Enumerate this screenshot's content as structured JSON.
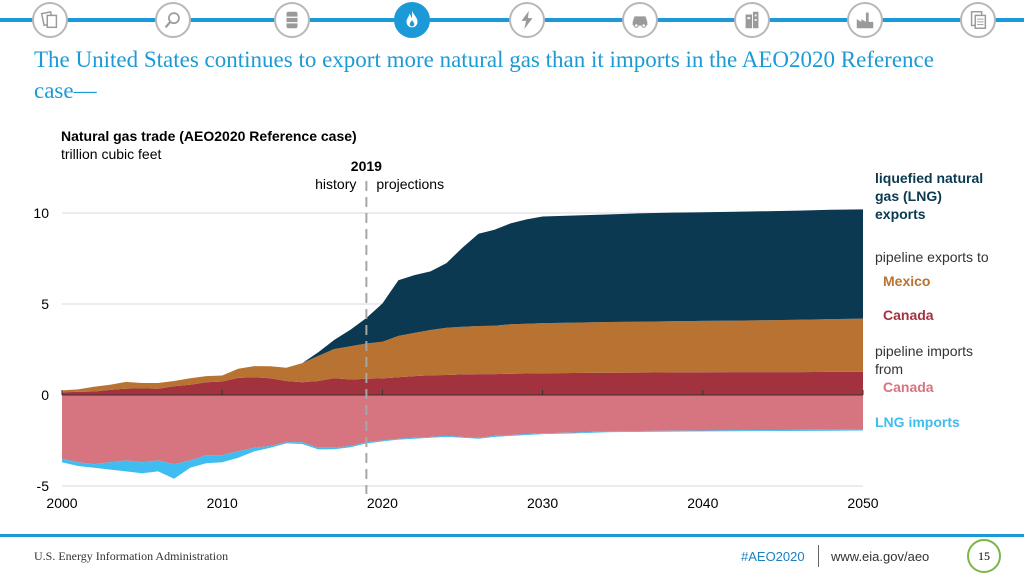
{
  "slide": {
    "title": "The United States continues to export more natural gas than it imports in the AEO2020 Reference case—"
  },
  "nav": {
    "icons": [
      "docs-icon",
      "magnifier-icon",
      "oil-barrel-icon",
      "flame-icon",
      "electricity-icon",
      "car-icon",
      "buildings-icon",
      "industry-icon",
      "document-icon"
    ],
    "active_index": 3
  },
  "colors": {
    "accent": "#1b9ad7",
    "lng_exports": "#0a3951",
    "mexico": "#b87333",
    "canada_exports": "#a3323f",
    "canada_imports": "#d6747f",
    "lng_imports": "#3fbdf0"
  },
  "chart_data": {
    "type": "area",
    "title": "Natural gas trade (AEO2020 Reference case)",
    "ylabel": "trillion cubic feet",
    "xlim": [
      2000,
      2050
    ],
    "ylim": [
      -5,
      10
    ],
    "x_ticks": [
      "2000",
      "2010",
      "2020",
      "2030",
      "2040",
      "2050"
    ],
    "y_ticks": [
      "10",
      "5",
      "0",
      "-5"
    ],
    "divider": {
      "year": 2019,
      "label": "2019",
      "left": "history",
      "right": "projections"
    },
    "x": [
      2000,
      2001,
      2002,
      2003,
      2004,
      2005,
      2006,
      2007,
      2008,
      2009,
      2010,
      2011,
      2012,
      2013,
      2014,
      2015,
      2016,
      2017,
      2018,
      2019,
      2020,
      2021,
      2022,
      2023,
      2024,
      2025,
      2026,
      2027,
      2028,
      2029,
      2030,
      2032,
      2034,
      2036,
      2038,
      2040,
      2042,
      2044,
      2046,
      2048,
      2050
    ],
    "series_positive": [
      {
        "name": "pipeline exports to Canada",
        "values": [
          0.15,
          0.17,
          0.19,
          0.28,
          0.35,
          0.36,
          0.34,
          0.48,
          0.56,
          0.7,
          0.74,
          0.94,
          0.97,
          0.92,
          0.77,
          0.7,
          0.77,
          0.93,
          0.85,
          0.89,
          0.91,
          0.98,
          1.04,
          1.08,
          1.1,
          1.13,
          1.15,
          1.15,
          1.17,
          1.18,
          1.2,
          1.21,
          1.22,
          1.23,
          1.24,
          1.25,
          1.26,
          1.26,
          1.26,
          1.27,
          1.27
        ]
      },
      {
        "name": "pipeline exports to Mexico",
        "values": [
          0.1,
          0.14,
          0.26,
          0.28,
          0.37,
          0.3,
          0.32,
          0.29,
          0.36,
          0.34,
          0.33,
          0.5,
          0.62,
          0.66,
          0.73,
          1.05,
          1.38,
          1.6,
          1.83,
          1.94,
          2.02,
          2.27,
          2.37,
          2.49,
          2.6,
          2.62,
          2.64,
          2.66,
          2.72,
          2.73,
          2.75,
          2.77,
          2.79,
          2.8,
          2.81,
          2.82,
          2.83,
          2.85,
          2.87,
          2.9,
          2.93
        ]
      },
      {
        "name": "liquefied natural gas (LNG) exports",
        "values": [
          0.0,
          0.0,
          0.0,
          0.0,
          0.0,
          0.0,
          0.0,
          0.0,
          0.0,
          0.0,
          0.0,
          0.0,
          0.0,
          0.0,
          0.0,
          0.0,
          0.2,
          0.5,
          0.9,
          1.4,
          2.1,
          3.05,
          3.18,
          3.22,
          3.55,
          4.35,
          5.07,
          5.27,
          5.54,
          5.74,
          5.86,
          5.88,
          5.91,
          5.95,
          5.97,
          5.97,
          5.98,
          5.99,
          6.0,
          6.01,
          6.0
        ]
      }
    ],
    "series_negative": [
      {
        "name": "pipeline imports from Canada",
        "values": [
          3.5,
          3.7,
          3.8,
          3.7,
          3.6,
          3.7,
          3.6,
          3.8,
          3.6,
          3.3,
          3.3,
          3.1,
          2.9,
          2.8,
          2.6,
          2.6,
          2.9,
          2.9,
          2.8,
          2.6,
          2.5,
          2.4,
          2.35,
          2.3,
          2.25,
          2.3,
          2.35,
          2.25,
          2.2,
          2.15,
          2.1,
          2.06,
          2.0,
          1.98,
          1.96,
          1.95,
          1.94,
          1.93,
          1.92,
          1.91,
          1.9
        ]
      },
      {
        "name": "LNG imports",
        "values": [
          0.2,
          0.2,
          0.2,
          0.4,
          0.6,
          0.6,
          0.6,
          0.8,
          0.4,
          0.45,
          0.4,
          0.35,
          0.2,
          0.1,
          0.06,
          0.09,
          0.09,
          0.08,
          0.07,
          0.06,
          0.05,
          0.05,
          0.05,
          0.05,
          0.05,
          0.05,
          0.05,
          0.05,
          0.05,
          0.05,
          0.05,
          0.05,
          0.05,
          0.05,
          0.05,
          0.05,
          0.05,
          0.05,
          0.05,
          0.05,
          0.05
        ]
      }
    ],
    "legend": {
      "lng_exports": "liquefied natural gas (LNG) exports",
      "pipeline_exports_heading": "pipeline exports to",
      "mexico": "Mexico",
      "canada_exports": "Canada",
      "pipeline_imports_heading": "pipeline imports from",
      "canada_imports": "Canada",
      "lng_imports": "LNG imports"
    }
  },
  "footer": {
    "source": "U.S. Energy Information Administration",
    "hashtag": "#AEO2020",
    "url": "www.eia.gov/aeo",
    "page": "15"
  }
}
